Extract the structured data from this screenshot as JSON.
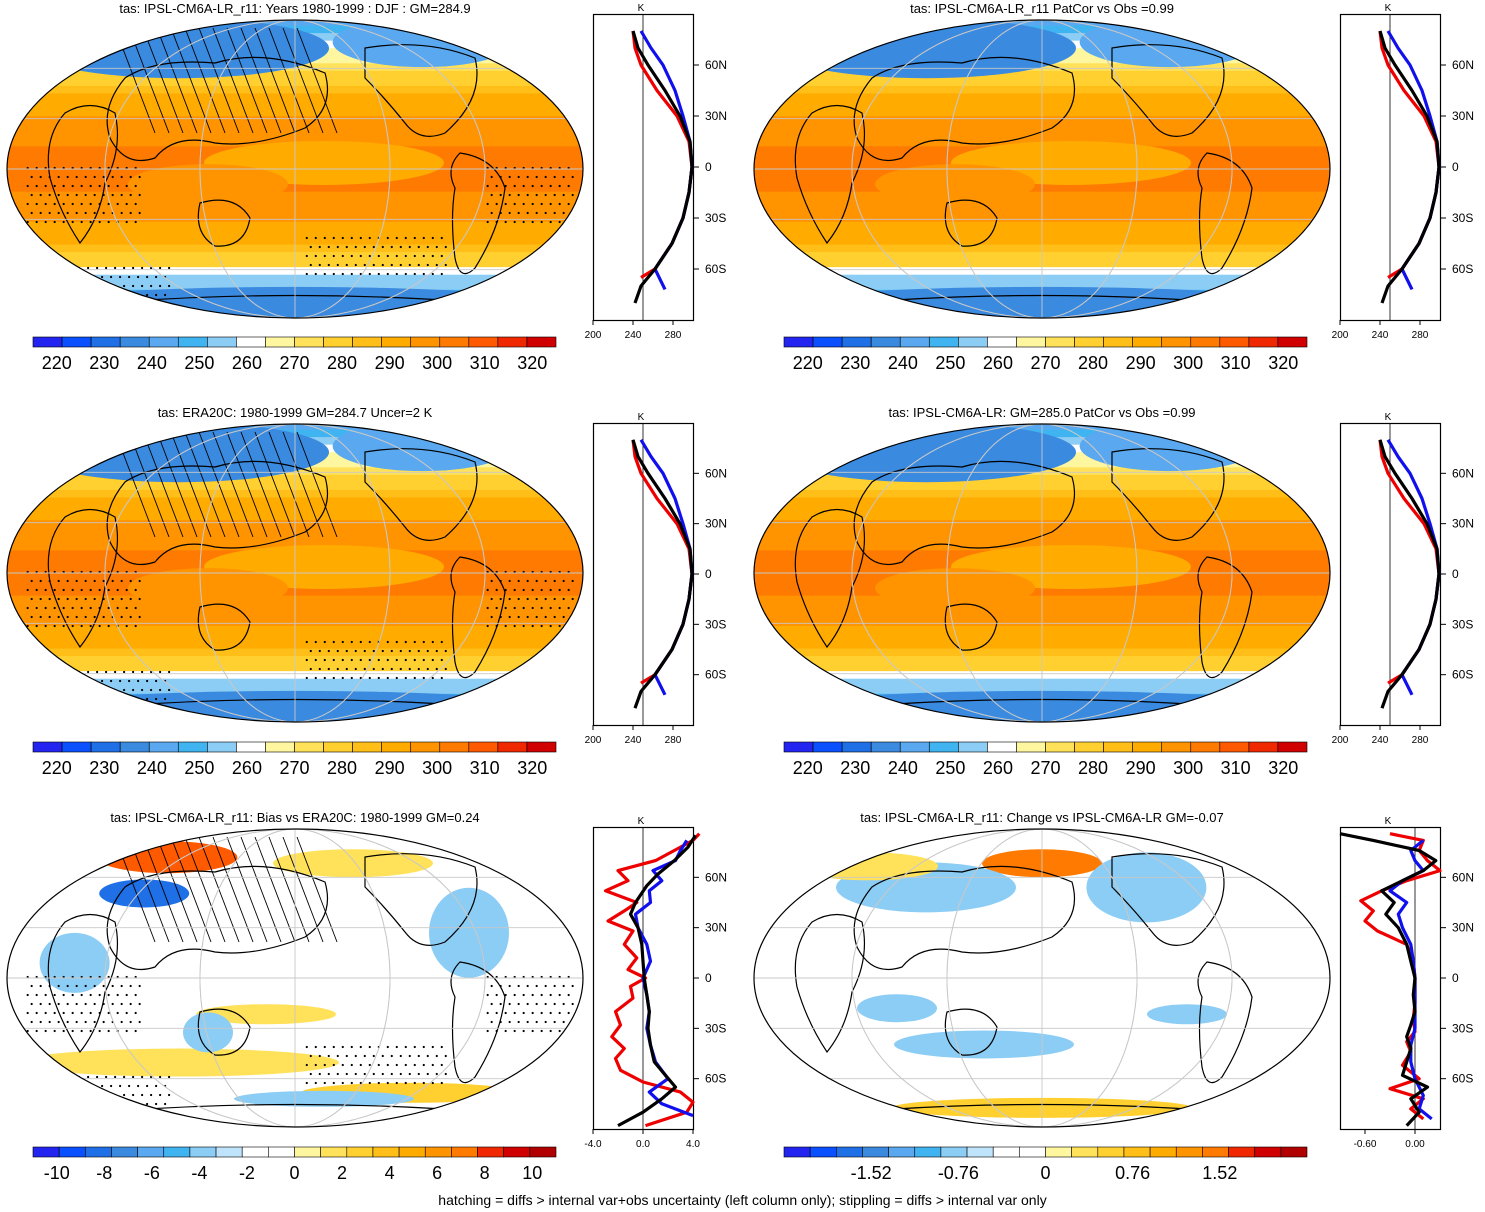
{
  "footer": "hatching = diffs > internal var+obs uncertainty (left column only); stippling = diffs > internal var only",
  "colors": {
    "profile_model": "#000000",
    "profile_obs_red": "#ee0000",
    "profile_obs_blue": "#1010ee",
    "graticule": "#c8c8c8",
    "coast": "#000000"
  },
  "abs_palette": [
    "#2424f0",
    "#0a50ff",
    "#1f6fe6",
    "#3a8ae0",
    "#5aa8f0",
    "#3fb4f0",
    "#8ccdf5",
    "#ffffff",
    "#fff6a0",
    "#ffe25a",
    "#ffd030",
    "#ffbe18",
    "#ffab00",
    "#ff9400",
    "#ff7a00",
    "#ff5a00",
    "#f02800",
    "#d00000"
  ],
  "abs_ticks": [
    "220",
    "230",
    "240",
    "250",
    "260",
    "270",
    "280",
    "290",
    "300",
    "310",
    "320"
  ],
  "bias_ticks": [
    "-10",
    "-8",
    "-6",
    "-4",
    "-2",
    "0",
    "2",
    "4",
    "6",
    "8",
    "10"
  ],
  "change_ticks": [
    "-1.52",
    "-0.76",
    "0",
    "0.76",
    "1.52"
  ],
  "lat_ticks": [
    "60N",
    "30N",
    "0",
    "30S",
    "60S"
  ],
  "profile_unit": "K",
  "chart_data": [
    {
      "type": "heatmap",
      "title": "tas: IPSL-CM6A-LR_r11: Years 1980-1999 : DJF : GM=284.9",
      "colorbar": {
        "min": 215,
        "max": 325,
        "ticks": [
          220,
          230,
          240,
          250,
          260,
          270,
          280,
          290,
          300,
          310,
          320
        ]
      },
      "hatching": true,
      "stippling": true,
      "profile": {
        "xlim": [
          200,
          300
        ],
        "xticks": [
          "200",
          "240",
          "280"
        ],
        "ylim": [
          -90,
          90
        ],
        "series": [
          {
            "color": "black",
            "lat": [
              -80,
              -70,
              -60,
              -45,
              -30,
              -15,
              0,
              15,
              30,
              45,
              60,
              70,
              80
            ],
            "values": [
              242,
              248,
              262,
              279,
              290,
              296,
              299,
              297,
              287,
              272,
              255,
              245,
              240
            ]
          },
          {
            "color": "red",
            "lat": [
              -65,
              -60,
              -45,
              -30,
              -15,
              0,
              15,
              30,
              45,
              60,
              70,
              80
            ],
            "values": [
              248,
              262,
              279,
              290,
              296,
              299,
              296,
              284,
              264,
              248,
              242,
              240
            ]
          },
          {
            "color": "blue",
            "lat": [
              -72,
              -60,
              -45,
              -30,
              -15,
              0,
              15,
              30,
              45,
              60,
              70,
              80
            ],
            "values": [
              272,
              262,
              279,
              290,
              296,
              299,
              297,
              290,
              282,
              270,
              258,
              248
            ]
          }
        ]
      }
    },
    {
      "type": "heatmap",
      "title": "tas: IPSL-CM6A-LR_r11 PatCor vs Obs =0.99",
      "colorbar": {
        "min": 215,
        "max": 325,
        "ticks": [
          220,
          230,
          240,
          250,
          260,
          270,
          280,
          290,
          300,
          310,
          320
        ]
      },
      "profile": {
        "xlim": [
          200,
          300
        ],
        "xticks": [
          "200",
          "240",
          "280"
        ],
        "ylim": [
          -90,
          90
        ],
        "series": [
          {
            "color": "black",
            "lat": [
              -80,
              -70,
              -60,
              -45,
              -30,
              -15,
              0,
              15,
              30,
              45,
              60,
              70,
              80
            ],
            "values": [
              242,
              248,
              262,
              279,
              290,
              296,
              299,
              297,
              287,
              272,
              255,
              245,
              240
            ]
          },
          {
            "color": "red",
            "lat": [
              -65,
              -60,
              -45,
              -30,
              -15,
              0,
              15,
              30,
              45,
              60,
              70,
              80
            ],
            "values": [
              248,
              262,
              279,
              290,
              296,
              299,
              296,
              284,
              264,
              248,
              242,
              240
            ]
          },
          {
            "color": "blue",
            "lat": [
              -72,
              -60,
              -45,
              -30,
              -15,
              0,
              15,
              30,
              45,
              60,
              70,
              80
            ],
            "values": [
              272,
              262,
              279,
              290,
              296,
              299,
              297,
              290,
              282,
              270,
              258,
              248
            ]
          }
        ]
      }
    },
    {
      "type": "heatmap",
      "title": "tas: ERA20C: 1980-1999 GM=284.7 Uncer=2 K",
      "colorbar": {
        "min": 215,
        "max": 325,
        "ticks": [
          220,
          230,
          240,
          250,
          260,
          270,
          280,
          290,
          300,
          310,
          320
        ]
      },
      "hatching": true,
      "stippling": true,
      "profile": {
        "xlim": [
          200,
          300
        ],
        "xticks": [
          "200",
          "240",
          "280"
        ],
        "ylim": [
          -90,
          90
        ],
        "series": [
          {
            "color": "black",
            "lat": [
              -80,
              -70,
              -60,
              -45,
              -30,
              -15,
              0,
              15,
              30,
              45,
              60,
              70,
              80
            ],
            "values": [
              242,
              248,
              262,
              279,
              290,
              296,
              299,
              297,
              287,
              272,
              255,
              245,
              240
            ]
          },
          {
            "color": "red",
            "lat": [
              -65,
              -60,
              -45,
              -30,
              -15,
              0,
              15,
              30,
              45,
              60,
              70,
              80
            ],
            "values": [
              248,
              262,
              279,
              290,
              296,
              299,
              296,
              284,
              264,
              248,
              242,
              240
            ]
          },
          {
            "color": "blue",
            "lat": [
              -72,
              -60,
              -45,
              -30,
              -15,
              0,
              15,
              30,
              45,
              60,
              70,
              80
            ],
            "values": [
              272,
              262,
              279,
              290,
              296,
              299,
              297,
              290,
              282,
              270,
              258,
              248
            ]
          }
        ]
      }
    },
    {
      "type": "heatmap",
      "title": "tas: IPSL-CM6A-LR: GM=285.0 PatCor vs Obs =0.99",
      "colorbar": {
        "min": 215,
        "max": 325,
        "ticks": [
          220,
          230,
          240,
          250,
          260,
          270,
          280,
          290,
          300,
          310,
          320
        ]
      },
      "profile": {
        "xlim": [
          200,
          300
        ],
        "xticks": [
          "200",
          "240",
          "280"
        ],
        "ylim": [
          -90,
          90
        ],
        "series": [
          {
            "color": "black",
            "lat": [
              -80,
              -70,
              -60,
              -45,
              -30,
              -15,
              0,
              15,
              30,
              45,
              60,
              70,
              80
            ],
            "values": [
              242,
              248,
              262,
              279,
              290,
              296,
              299,
              297,
              287,
              272,
              255,
              245,
              240
            ]
          },
          {
            "color": "red",
            "lat": [
              -65,
              -60,
              -45,
              -30,
              -15,
              0,
              15,
              30,
              45,
              60,
              70,
              80
            ],
            "values": [
              248,
              262,
              279,
              290,
              296,
              299,
              296,
              284,
              264,
              248,
              242,
              240
            ]
          },
          {
            "color": "blue",
            "lat": [
              -72,
              -60,
              -45,
              -30,
              -15,
              0,
              15,
              30,
              45,
              60,
              70,
              80
            ],
            "values": [
              272,
              262,
              279,
              290,
              296,
              299,
              297,
              290,
              282,
              270,
              258,
              248
            ]
          }
        ]
      }
    },
    {
      "type": "heatmap",
      "title": "tas: IPSL-CM6A-LR_r11: Bias vs ERA20C: 1980-1999 GM=0.24",
      "colorbar": {
        "min": -11,
        "max": 11,
        "ticks": [
          -10,
          -8,
          -6,
          -4,
          -2,
          0,
          2,
          4,
          6,
          8,
          10
        ]
      },
      "hatching": true,
      "stippling": true,
      "profile": {
        "xlim": [
          -4,
          4
        ],
        "xticks": [
          "-4.0",
          "0.0",
          "4.0"
        ],
        "ylim": [
          -90,
          90
        ],
        "series": [
          {
            "color": "black",
            "lat": [
              -88,
              -80,
              -72,
              -65,
              -58,
              -50,
              -40,
              -30,
              -20,
              -10,
              0,
              10,
              20,
              30,
              38,
              45,
              55,
              62,
              70,
              78,
              85
            ],
            "values": [
              -2.0,
              0.0,
              1.5,
              2.6,
              1.8,
              0.9,
              0.6,
              0.4,
              0.5,
              0.3,
              0.1,
              0.0,
              -0.1,
              -0.4,
              -1.0,
              -0.6,
              0.3,
              1.2,
              2.5,
              3.6,
              4.2
            ]
          },
          {
            "color": "red",
            "lat": [
              -88,
              -80,
              -74,
              -68,
              -62,
              -55,
              -48,
              -42,
              -35,
              -28,
              -20,
              -12,
              -5,
              0,
              5,
              12,
              20,
              28,
              34,
              40,
              45,
              52,
              58,
              64,
              70,
              76,
              82,
              86
            ],
            "values": [
              0.2,
              3.5,
              4.0,
              3.0,
              0.0,
              -1.8,
              -2.2,
              -1.5,
              -2.5,
              -1.8,
              -2.2,
              -0.8,
              -1.0,
              0.2,
              -1.2,
              -0.5,
              -1.5,
              -0.8,
              -2.8,
              -1.5,
              -0.5,
              -3.0,
              -1.2,
              -2.0,
              1.0,
              2.5,
              4.0,
              4.5
            ]
          },
          {
            "color": "blue",
            "lat": [
              -82,
              -75,
              -68,
              -60,
              -50,
              -40,
              -30,
              -20,
              -10,
              0,
              10,
              20,
              30,
              38,
              45,
              52,
              58,
              64,
              70,
              76,
              82
            ],
            "values": [
              4.0,
              1.5,
              0.5,
              2.0,
              1.0,
              0.6,
              0.3,
              0.5,
              0.3,
              0.0,
              0.6,
              0.3,
              -0.4,
              -0.6,
              0.6,
              0.5,
              1.5,
              0.8,
              2.6,
              3.0,
              3.5
            ]
          }
        ]
      }
    },
    {
      "type": "heatmap",
      "title": "tas: IPSL-CM6A-LR_r11: Change vs IPSL-CM6A-LR GM=-0.07",
      "colorbar": {
        "min": -2.28,
        "max": 2.28,
        "ticks": [
          -1.52,
          -0.76,
          0,
          0.76,
          1.52
        ]
      },
      "profile": {
        "xlim": [
          -0.9,
          0.3
        ],
        "xticks": [
          "-0.60",
          "0.00"
        ],
        "ylim": [
          -90,
          90
        ],
        "series": [
          {
            "color": "black",
            "lat": [
              -88,
              -80,
              -72,
              -65,
              -58,
              -50,
              -42,
              -35,
              -28,
              -20,
              -10,
              0,
              10,
              20,
              30,
              38,
              45,
              52,
              58,
              64,
              70,
              76,
              82,
              86
            ],
            "values": [
              -0.1,
              0.05,
              -0.05,
              0.15,
              -0.15,
              -0.1,
              -0.05,
              -0.1,
              -0.05,
              0.0,
              -0.02,
              0.0,
              -0.05,
              -0.1,
              -0.2,
              -0.35,
              -0.25,
              -0.4,
              -0.15,
              0.1,
              0.25,
              0.05,
              -0.5,
              -0.9
            ]
          },
          {
            "color": "red",
            "lat": [
              -84,
              -78,
              -72,
              -66,
              -60,
              -52,
              -44,
              -38,
              -32,
              -24,
              -15,
              0,
              10,
              20,
              28,
              34,
              40,
              46,
              52,
              58,
              64,
              70,
              76,
              82,
              86
            ],
            "values": [
              0.1,
              -0.05,
              0.1,
              -0.3,
              0.05,
              -0.15,
              -0.05,
              -0.1,
              0.0,
              -0.02,
              0.0,
              0.0,
              -0.02,
              -0.1,
              -0.45,
              -0.6,
              -0.5,
              -0.65,
              -0.4,
              -0.1,
              0.3,
              0.15,
              0.05,
              0.1,
              -0.3
            ]
          },
          {
            "color": "blue",
            "lat": [
              -84,
              -78,
              -70,
              -60,
              -50,
              -40,
              -30,
              -20,
              -10,
              0,
              10,
              20,
              30,
              38,
              45,
              52,
              58,
              64,
              70,
              76,
              82
            ],
            "values": [
              0.2,
              0.05,
              0.1,
              0.0,
              -0.05,
              -0.05,
              0.0,
              0.0,
              0.0,
              0.0,
              -0.02,
              -0.05,
              -0.15,
              -0.2,
              -0.1,
              -0.3,
              -0.15,
              0.1,
              0.0,
              -0.05,
              0.1
            ]
          }
        ]
      }
    }
  ]
}
